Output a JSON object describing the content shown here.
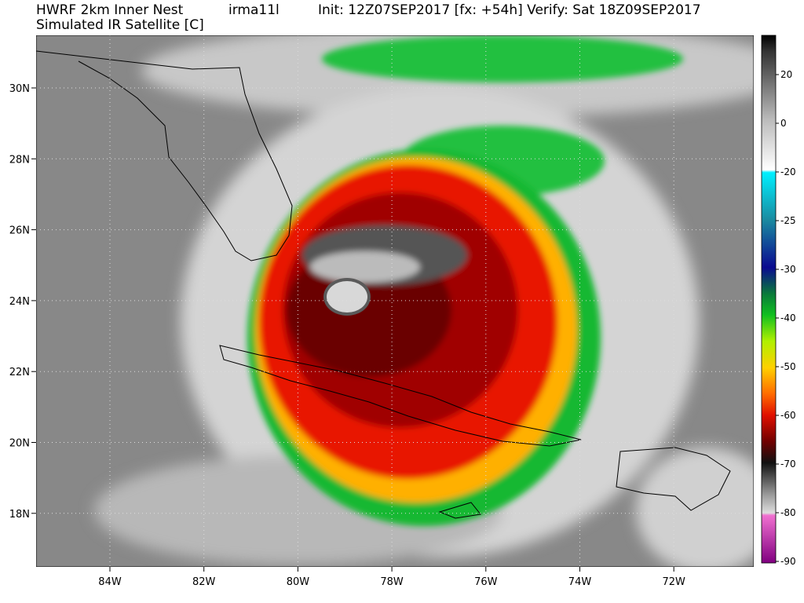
{
  "header": {
    "model": "HWRF 2km Inner Nest",
    "storm": "irma11l",
    "run": "Init: 12Z07SEP2017 [fx: +54h] Verify: Sat 18Z09SEP2017",
    "product": "Simulated IR Satellite [C]"
  },
  "map": {
    "lon_labels": [
      "84W",
      "82W",
      "80W",
      "78W",
      "76W",
      "74W",
      "72W"
    ],
    "lat_labels": [
      "30N",
      "28N",
      "26N",
      "24N",
      "22N",
      "20N",
      "18N"
    ]
  },
  "colorbar": {
    "ticks": [
      20,
      0,
      -20,
      -25,
      -30,
      -40,
      -50,
      -60,
      -70,
      -80,
      -90
    ]
  }
}
